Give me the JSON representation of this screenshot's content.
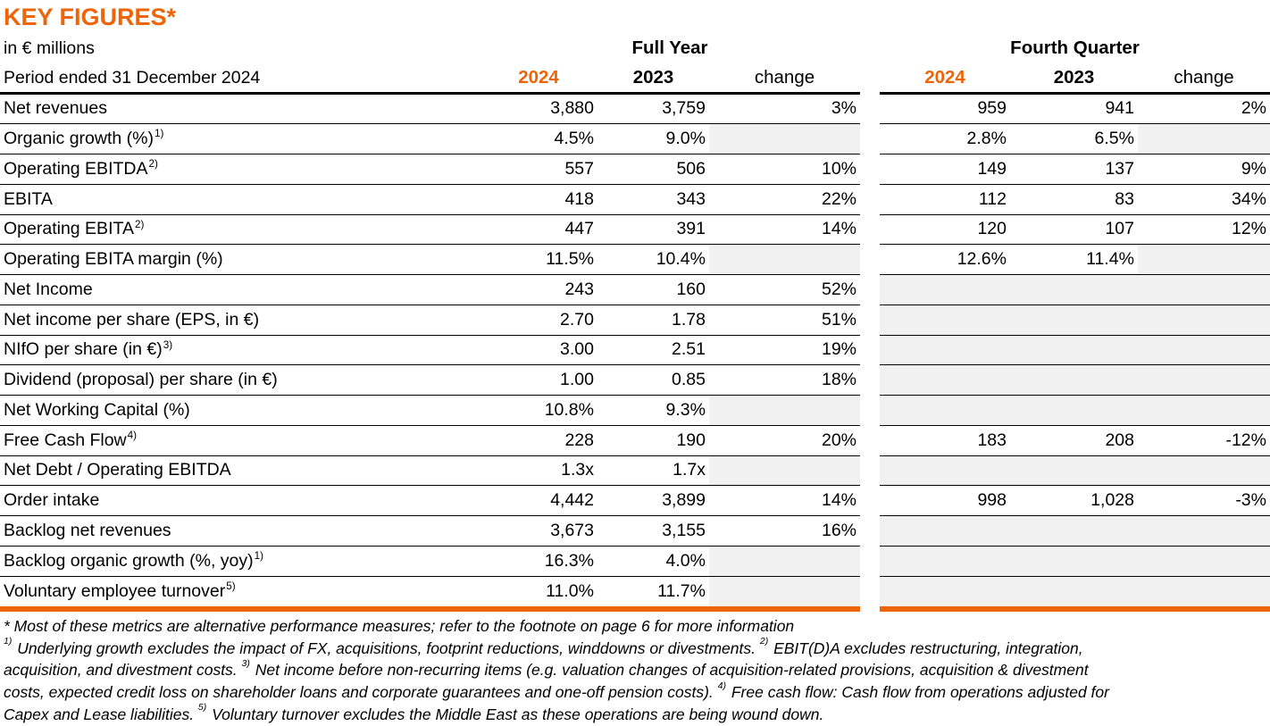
{
  "title": "KEY FIGURES*",
  "colors": {
    "accent_orange": "#EE6408",
    "empty_cell_gray": "#F1F1F1"
  },
  "header": {
    "unit_label": "in € millions",
    "period_label": "Period ended 31 December 2024",
    "full_year_label": "Full Year",
    "fourth_quarter_label": "Fourth Quarter",
    "fy_col_2024": "2024",
    "fy_col_2023": "2023",
    "fy_col_change": "change",
    "q4_col_2024": "2024",
    "q4_col_2023": "2023",
    "q4_col_change": "change"
  },
  "table": {
    "rows": [
      {
        "label": "Net revenues",
        "sup": "",
        "fy": [
          "3,880",
          "3,759",
          "3%"
        ],
        "q4": [
          "959",
          "941",
          "2%"
        ]
      },
      {
        "label": "Organic growth (%)",
        "sup": "1)",
        "fy": [
          "4.5%",
          "9.0%",
          ""
        ],
        "q4": [
          "2.8%",
          "6.5%",
          ""
        ]
      },
      {
        "label": "Operating EBITDA",
        "sup": "2)",
        "fy": [
          "557",
          "506",
          "10%"
        ],
        "q4": [
          "149",
          "137",
          "9%"
        ]
      },
      {
        "label": "EBITA",
        "sup": "",
        "fy": [
          "418",
          "343",
          "22%"
        ],
        "q4": [
          "112",
          "83",
          "34%"
        ]
      },
      {
        "label": "Operating EBITA",
        "sup": "2)",
        "fy": [
          "447",
          "391",
          "14%"
        ],
        "q4": [
          "120",
          "107",
          "12%"
        ]
      },
      {
        "label": "Operating EBITA margin (%)",
        "sup": "",
        "fy": [
          "11.5%",
          "10.4%",
          ""
        ],
        "q4": [
          "12.6%",
          "11.4%",
          ""
        ]
      },
      {
        "label": "Net Income",
        "sup": "",
        "fy": [
          "243",
          "160",
          "52%"
        ],
        "q4": [
          "",
          "",
          ""
        ]
      },
      {
        "label": "Net income per share (EPS, in €)",
        "sup": "",
        "fy": [
          "2.70",
          "1.78",
          "51%"
        ],
        "q4": [
          "",
          "",
          ""
        ]
      },
      {
        "label": "NIfO per share (in €)",
        "sup": "3)",
        "fy": [
          "3.00",
          "2.51",
          "19%"
        ],
        "q4": [
          "",
          "",
          ""
        ]
      },
      {
        "label": "Dividend (proposal) per share (in €)",
        "sup": "",
        "fy": [
          "1.00",
          "0.85",
          "18%"
        ],
        "q4": [
          "",
          "",
          ""
        ]
      },
      {
        "label": "Net Working Capital (%)",
        "sup": "",
        "fy": [
          "10.8%",
          "9.3%",
          ""
        ],
        "q4": [
          "",
          "",
          ""
        ]
      },
      {
        "label": "Free Cash Flow",
        "sup": "4)",
        "fy": [
          "228",
          "190",
          "20%"
        ],
        "q4": [
          "183",
          "208",
          "-12%"
        ]
      },
      {
        "label": "Net Debt / Operating EBITDA",
        "sup": "",
        "fy": [
          "1.3x",
          "1.7x",
          ""
        ],
        "q4": [
          "",
          "",
          ""
        ]
      },
      {
        "label": "Order intake",
        "sup": "",
        "fy": [
          "4,442",
          "3,899",
          "14%"
        ],
        "q4": [
          "998",
          "1,028",
          "-3%"
        ]
      },
      {
        "label": "Backlog net revenues",
        "sup": "",
        "fy": [
          "3,673",
          "3,155",
          "16%"
        ],
        "q4": [
          "",
          "",
          ""
        ]
      },
      {
        "label": "Backlog organic growth (%, yoy)",
        "sup": "1)",
        "fy": [
          "16.3%",
          "4.0%",
          ""
        ],
        "q4": [
          "",
          "",
          ""
        ]
      },
      {
        "label": "Voluntary employee turnover",
        "sup": "5)",
        "fy": [
          "11.0%",
          "11.7%",
          ""
        ],
        "q4": [
          "",
          "",
          ""
        ]
      }
    ]
  },
  "footnotes": [
    [
      {
        "t": "* Most of these metrics are alternative performance measures; refer to the footnote on page 6 for more information",
        "sup": false
      }
    ],
    [
      {
        "t": "1)",
        "sup": true
      },
      {
        "t": " Underlying growth excludes the impact of FX, acquisitions, footprint reductions, winddowns or divestments. ",
        "sup": false
      },
      {
        "t": "2)",
        "sup": true
      },
      {
        "t": " EBIT(D)A excludes restructuring, integration,",
        "sup": false
      }
    ],
    [
      {
        "t": "acquisition, and divestment costs. ",
        "sup": false
      },
      {
        "t": "3)",
        "sup": true
      },
      {
        "t": " Net income before non-recurring items (e.g. valuation changes of acquisition-related provisions, acquisition & divestment",
        "sup": false
      }
    ],
    [
      {
        "t": "costs, expected credit loss on shareholder loans and corporate guarantees and one-off pension costs). ",
        "sup": false
      },
      {
        "t": "4)",
        "sup": true
      },
      {
        "t": " Free cash flow: Cash flow from operations adjusted for",
        "sup": false
      }
    ],
    [
      {
        "t": "Capex and Lease liabilities. ",
        "sup": false
      },
      {
        "t": "5)",
        "sup": true
      },
      {
        "t": " Voluntary turnover excludes the Middle East as these operations are being wound down.",
        "sup": false
      }
    ]
  ]
}
